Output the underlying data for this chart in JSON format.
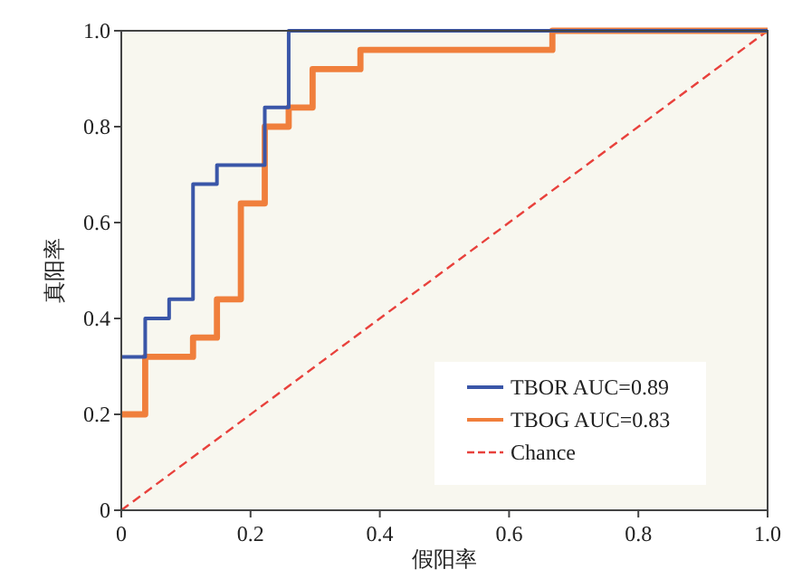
{
  "chart_data": {
    "type": "step",
    "xlabel": "假阳率",
    "ylabel": "真阳率",
    "xlim": [
      0,
      1
    ],
    "ylim": [
      0,
      1
    ],
    "xticks": [
      0,
      0.2,
      0.4,
      0.6,
      0.8,
      {
        "value": 1,
        "label": "1.0"
      }
    ],
    "yticks": [
      0,
      0.2,
      0.4,
      0.6,
      0.8,
      {
        "value": 1,
        "label": "1.0"
      }
    ],
    "legend": "bottom right",
    "grid": false,
    "series": [
      {
        "name": "TBOR AUC=0.89",
        "color": "#3a56a8",
        "x": [
          0,
          0.037,
          0.074,
          0.111,
          0.148,
          0.222,
          0.259,
          1.0
        ],
        "values": [
          0.32,
          0.4,
          0.44,
          0.68,
          0.72,
          0.84,
          1.0,
          1.0
        ]
      },
      {
        "name": "TBOG AUC=0.83",
        "color": "#f07f3c",
        "x": [
          0,
          0.037,
          0.111,
          0.148,
          0.185,
          0.222,
          0.259,
          0.296,
          0.37,
          0.667,
          1.0
        ],
        "values": [
          0.2,
          0.32,
          0.36,
          0.44,
          0.64,
          0.8,
          0.84,
          0.92,
          0.96,
          1.0,
          1.0
        ]
      },
      {
        "name": "Chance",
        "type": "line",
        "line_style": "dashed",
        "color": "#e8413c",
        "x": [
          0,
          1
        ],
        "values": [
          0,
          1
        ]
      }
    ]
  }
}
